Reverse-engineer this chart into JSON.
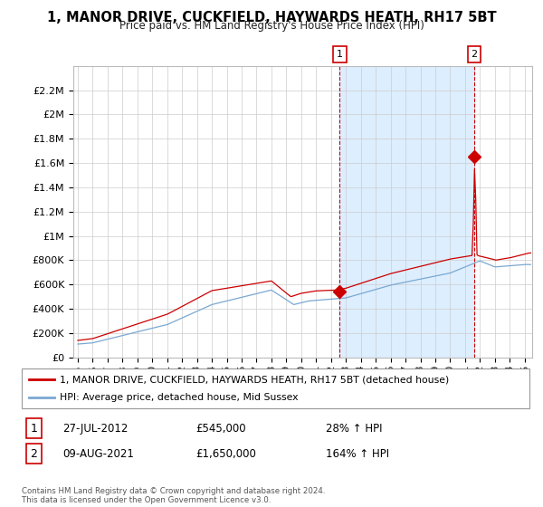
{
  "title": "1, MANOR DRIVE, CUCKFIELD, HAYWARDS HEATH, RH17 5BT",
  "subtitle": "Price paid vs. HM Land Registry's House Price Index (HPI)",
  "ylim": [
    0,
    2400000
  ],
  "yticks": [
    0,
    200000,
    400000,
    600000,
    800000,
    1000000,
    1200000,
    1400000,
    1600000,
    1800000,
    2000000,
    2200000
  ],
  "ytick_labels": [
    "£0",
    "£200K",
    "£400K",
    "£600K",
    "£800K",
    "£1M",
    "£1.2M",
    "£1.4M",
    "£1.6M",
    "£1.8M",
    "£2M",
    "£2.2M"
  ],
  "xlim_start": 1994.7,
  "xlim_end": 2025.5,
  "red_line_color": "#cc0000",
  "blue_line_color": "#7aa8d2",
  "shade_color": "#ddeeff",
  "annotation_box_color": "#cc0000",
  "legend_label_red": "1, MANOR DRIVE, CUCKFIELD, HAYWARDS HEATH, RH17 5BT (detached house)",
  "legend_label_blue": "HPI: Average price, detached house, Mid Sussex",
  "annotation1_label": "1",
  "annotation1_date": "27-JUL-2012",
  "annotation1_price": "£545,000",
  "annotation1_pct": "28% ↑ HPI",
  "annotation2_label": "2",
  "annotation2_date": "09-AUG-2021",
  "annotation2_price": "£1,650,000",
  "annotation2_pct": "164% ↑ HPI",
  "footer": "Contains HM Land Registry data © Crown copyright and database right 2024.\nThis data is licensed under the Open Government Licence v3.0.",
  "sale1_x": 2012.58,
  "sale1_y": 545000,
  "sale2_x": 2021.61,
  "sale2_y": 1650000
}
